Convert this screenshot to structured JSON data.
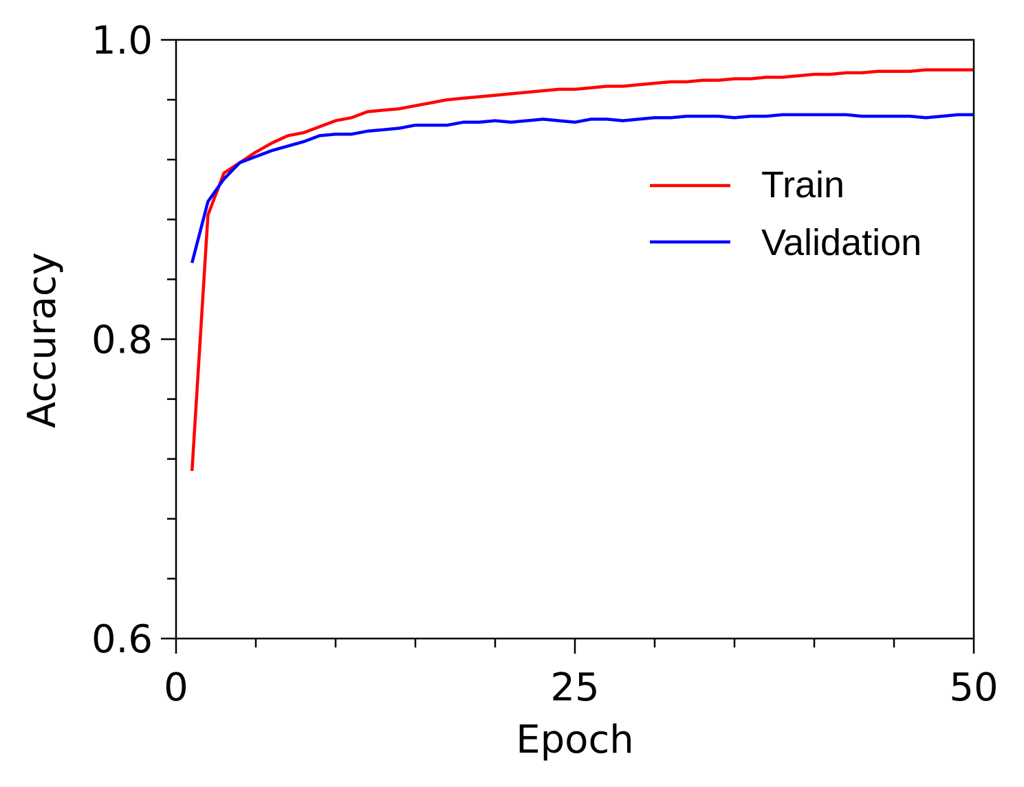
{
  "chart_data": {
    "type": "line",
    "title": "",
    "xlabel": "Epoch",
    "ylabel": "Accuracy",
    "xlim": [
      0,
      50
    ],
    "ylim": [
      0.6,
      1.0
    ],
    "x_major_ticks": [
      0,
      25,
      50
    ],
    "x_minor_ticks": [
      5,
      10,
      15,
      20,
      30,
      35,
      40,
      45
    ],
    "x_tick_labels": [
      "0",
      "25",
      "50"
    ],
    "y_major_ticks": [
      0.6,
      0.8,
      1.0
    ],
    "y_minor_ticks": [
      0.64,
      0.68,
      0.72,
      0.76,
      0.84,
      0.88,
      0.92,
      0.96
    ],
    "y_tick_labels": [
      "0.6",
      "0.8",
      "1.0"
    ],
    "grid": false,
    "legend_position": "top-right",
    "x": [
      1,
      2,
      3,
      4,
      5,
      6,
      7,
      8,
      9,
      10,
      11,
      12,
      13,
      14,
      15,
      16,
      17,
      18,
      19,
      20,
      21,
      22,
      23,
      24,
      25,
      26,
      27,
      28,
      29,
      30,
      31,
      32,
      33,
      34,
      35,
      36,
      37,
      38,
      39,
      40,
      41,
      42,
      43,
      44,
      45,
      46,
      47,
      48,
      49,
      50
    ],
    "series": [
      {
        "name": "Train",
        "color": "#ff0000",
        "values": [
          0.712,
          0.883,
          0.911,
          0.918,
          0.925,
          0.931,
          0.936,
          0.938,
          0.942,
          0.946,
          0.948,
          0.952,
          0.953,
          0.954,
          0.956,
          0.958,
          0.96,
          0.961,
          0.962,
          0.963,
          0.964,
          0.965,
          0.966,
          0.967,
          0.967,
          0.968,
          0.969,
          0.969,
          0.97,
          0.971,
          0.972,
          0.972,
          0.973,
          0.973,
          0.974,
          0.974,
          0.975,
          0.975,
          0.976,
          0.977,
          0.977,
          0.978,
          0.978,
          0.979,
          0.979,
          0.979,
          0.98,
          0.98,
          0.98,
          0.98
        ]
      },
      {
        "name": "Validation",
        "color": "#0000ff",
        "values": [
          0.851,
          0.892,
          0.907,
          0.918,
          0.922,
          0.926,
          0.929,
          0.932,
          0.936,
          0.937,
          0.937,
          0.939,
          0.94,
          0.941,
          0.943,
          0.943,
          0.943,
          0.945,
          0.945,
          0.946,
          0.945,
          0.946,
          0.947,
          0.946,
          0.945,
          0.947,
          0.947,
          0.946,
          0.947,
          0.948,
          0.948,
          0.949,
          0.949,
          0.949,
          0.948,
          0.949,
          0.949,
          0.95,
          0.95,
          0.95,
          0.95,
          0.95,
          0.949,
          0.949,
          0.949,
          0.949,
          0.948,
          0.949,
          0.95,
          0.95
        ]
      }
    ]
  }
}
